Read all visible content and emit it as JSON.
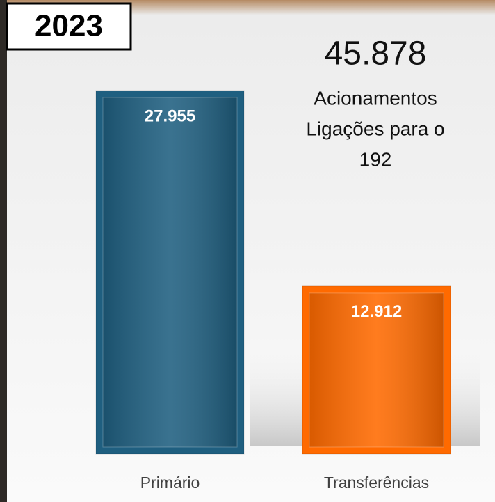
{
  "chart_data": {
    "type": "bar",
    "title": "2023",
    "categories": [
      "Primário",
      "Transferências"
    ],
    "values": [
      27955,
      12912
    ],
    "value_labels": [
      "27.955",
      "12.912"
    ],
    "colors": [
      "#1f5f80",
      "#ff6a00"
    ],
    "annotations": [
      "45.878",
      "Acionamentos",
      "Ligações para o",
      "192"
    ]
  }
}
